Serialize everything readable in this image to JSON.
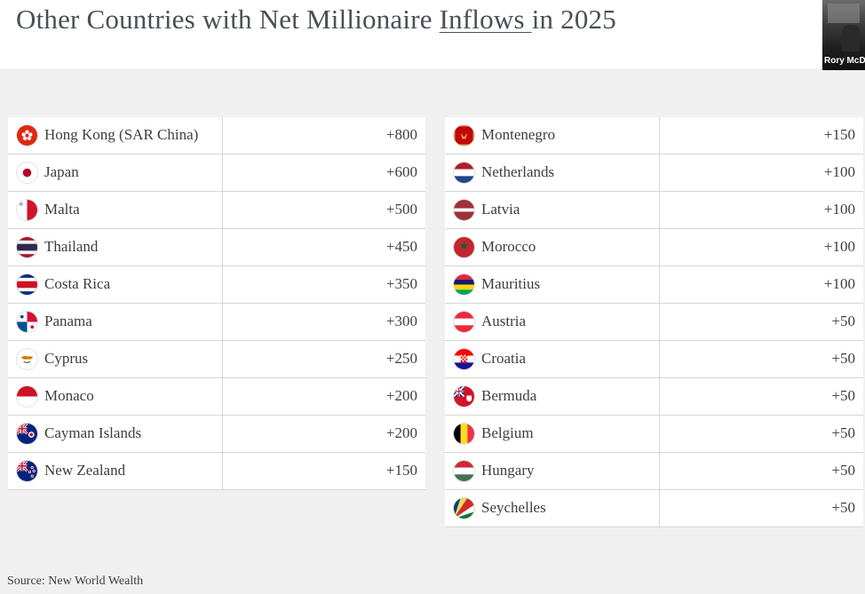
{
  "slide": {
    "title_before": "Other Countries with Net Millionaire ",
    "title_underlined": "Inflows ",
    "title_after": "in 2025",
    "source": "Source: New World Wealth"
  },
  "participant": {
    "name": "Rory McD"
  },
  "table_left": [
    {
      "country": "Hong Kong (SAR China)",
      "value": "+800",
      "flag": "hong-kong-flag-icon"
    },
    {
      "country": "Japan",
      "value": "+600",
      "flag": "japan-flag-icon"
    },
    {
      "country": "Malta",
      "value": "+500",
      "flag": "malta-flag-icon"
    },
    {
      "country": "Thailand",
      "value": "+450",
      "flag": "thailand-flag-icon"
    },
    {
      "country": "Costa Rica",
      "value": "+350",
      "flag": "costa-rica-flag-icon"
    },
    {
      "country": "Panama",
      "value": "+300",
      "flag": "panama-flag-icon"
    },
    {
      "country": "Cyprus",
      "value": "+250",
      "flag": "cyprus-flag-icon"
    },
    {
      "country": "Monaco",
      "value": "+200",
      "flag": "monaco-flag-icon"
    },
    {
      "country": "Cayman Islands",
      "value": "+200",
      "flag": "cayman-islands-flag-icon"
    },
    {
      "country": "New Zealand",
      "value": "+150",
      "flag": "new-zealand-flag-icon"
    }
  ],
  "table_right": [
    {
      "country": "Montenegro",
      "value": "+150",
      "flag": "montenegro-flag-icon"
    },
    {
      "country": "Netherlands",
      "value": "+100",
      "flag": "netherlands-flag-icon"
    },
    {
      "country": "Latvia",
      "value": "+100",
      "flag": "latvia-flag-icon"
    },
    {
      "country": "Morocco",
      "value": "+100",
      "flag": "morocco-flag-icon"
    },
    {
      "country": "Mauritius",
      "value": "+100",
      "flag": "mauritius-flag-icon"
    },
    {
      "country": "Austria",
      "value": "+50",
      "flag": "austria-flag-icon"
    },
    {
      "country": "Croatia",
      "value": "+50",
      "flag": "croatia-flag-icon"
    },
    {
      "country": "Bermuda",
      "value": "+50",
      "flag": "bermuda-flag-icon"
    },
    {
      "country": "Belgium",
      "value": "+50",
      "flag": "belgium-flag-icon"
    },
    {
      "country": "Hungary",
      "value": "+50",
      "flag": "hungary-flag-icon"
    },
    {
      "country": "Seychelles",
      "value": "+50",
      "flag": "seychelles-flag-icon"
    }
  ],
  "colors": {
    "background": "#f0f0f0",
    "panel": "#ffffff",
    "text": "#3d3d3d",
    "title": "#4a4f55",
    "divider": "#d6d6d6"
  }
}
